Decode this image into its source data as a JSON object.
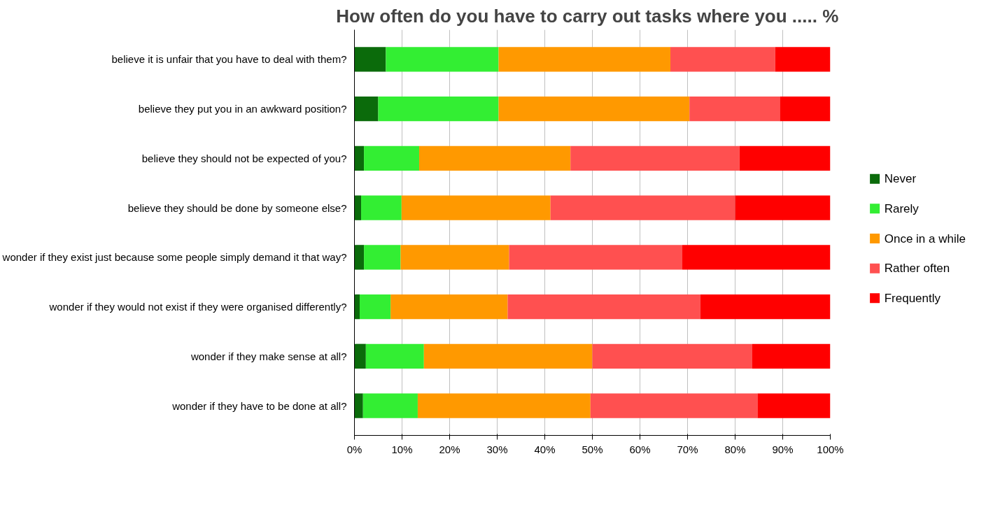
{
  "chart_data": {
    "type": "bar",
    "orientation": "horizontal",
    "stacked": true,
    "title": "How often do you have to carry out tasks where you .....   %",
    "categories": [
      "believe it is unfair that you have to deal with them?",
      "believe they put you in an awkward position?",
      "believe they should not be expected of you?",
      "believe they should be done by someone else?",
      "wonder if they exist just because some people simply demand it that way?",
      "wonder if they would not exist if they were organised differently?",
      "wonder if they make sense at all?",
      "wonder if they have to be done at all?"
    ],
    "series": [
      {
        "name": "Never",
        "color": "#0b6b0b",
        "values": [
          6.6,
          5.0,
          2.0,
          1.4,
          2.0,
          1.1,
          2.4,
          1.8
        ]
      },
      {
        "name": "Rarely",
        "color": "#33ee33",
        "values": [
          23.7,
          25.3,
          11.6,
          8.5,
          7.7,
          6.5,
          12.2,
          11.5
        ]
      },
      {
        "name": "Once in a while",
        "color": "#ff9900",
        "values": [
          36.1,
          40.1,
          31.8,
          31.3,
          22.8,
          24.6,
          35.4,
          36.3
        ]
      },
      {
        "name": "Rather often",
        "color": "#ff5050",
        "values": [
          22.0,
          19.0,
          35.5,
          38.8,
          36.4,
          40.5,
          33.6,
          35.1
        ]
      },
      {
        "name": "Frequently",
        "color": "#ff0000",
        "values": [
          11.6,
          10.6,
          19.1,
          20.0,
          31.1,
          27.3,
          16.4,
          15.3
        ]
      }
    ],
    "xlim": [
      0,
      100
    ],
    "xticks": [
      {
        "value": 0,
        "label": "0%"
      },
      {
        "value": 10,
        "label": "10%"
      },
      {
        "value": 20,
        "label": "20%"
      },
      {
        "value": 30,
        "label": "30%"
      },
      {
        "value": 40,
        "label": "40%"
      },
      {
        "value": 50,
        "label": "50%"
      },
      {
        "value": 60,
        "label": "60%"
      },
      {
        "value": 70,
        "label": "70%"
      },
      {
        "value": 80,
        "label": "80%"
      },
      {
        "value": 90,
        "label": "90%"
      },
      {
        "value": 100,
        "label": "100%"
      }
    ],
    "grid": "x",
    "legend": "right"
  }
}
